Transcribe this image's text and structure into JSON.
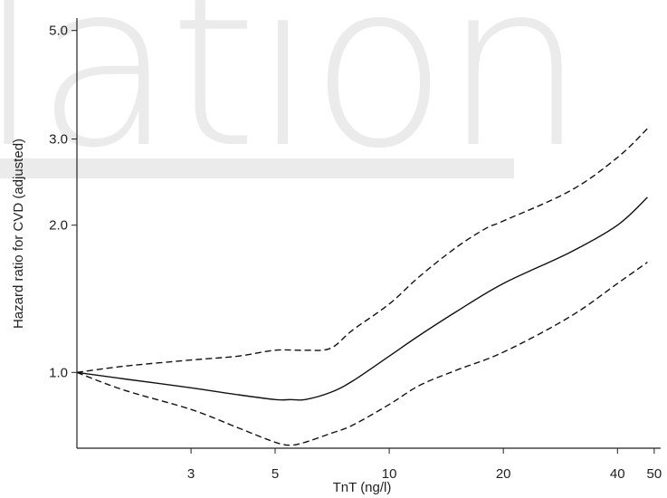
{
  "watermark": {
    "text": "lation"
  },
  "chart_data": {
    "type": "line",
    "xlabel": "TnT (ng/l)",
    "ylabel": "Hazard ratio for CVD (adjusted)",
    "x_scale": "log",
    "y_scale": "log",
    "xlim": [
      1.5,
      52
    ],
    "ylim": [
      0.7,
      5.3
    ],
    "x_ticks": [
      3,
      5,
      10,
      20,
      40,
      50
    ],
    "x_tick_labels": [
      "3",
      "5",
      "10",
      "20",
      "40",
      "50"
    ],
    "y_ticks": [
      1.0,
      2.0,
      3.0,
      5.0
    ],
    "y_tick_labels": [
      "1.0",
      "2.0",
      "3.0",
      "5.0"
    ],
    "grid": false,
    "series": [
      {
        "role": "estimate",
        "line_style": "solid",
        "x": [
          1.5,
          2,
          3,
          4,
          5,
          5.5,
          6,
          7,
          8,
          10,
          12,
          15,
          20,
          30,
          40,
          48
        ],
        "y": [
          1.0,
          0.97,
          0.93,
          0.9,
          0.88,
          0.88,
          0.88,
          0.91,
          0.96,
          1.08,
          1.19,
          1.33,
          1.52,
          1.76,
          2.0,
          2.28
        ]
      },
      {
        "role": "upper confidence limit",
        "line_style": "dashed",
        "x": [
          1.5,
          2,
          3,
          4,
          5,
          6,
          7,
          8,
          10,
          12,
          15,
          18,
          20,
          30,
          40,
          48
        ],
        "y": [
          1.0,
          1.03,
          1.06,
          1.08,
          1.11,
          1.11,
          1.12,
          1.22,
          1.38,
          1.57,
          1.8,
          1.97,
          2.04,
          2.35,
          2.75,
          3.15
        ]
      },
      {
        "role": "lower confidence limit",
        "line_style": "dashed",
        "x": [
          1.5,
          2,
          3,
          4,
          5,
          5.5,
          6,
          7,
          8,
          10,
          12,
          15,
          20,
          30,
          40,
          48
        ],
        "y": [
          1.0,
          0.92,
          0.84,
          0.77,
          0.72,
          0.71,
          0.72,
          0.75,
          0.78,
          0.86,
          0.94,
          1.01,
          1.1,
          1.3,
          1.52,
          1.68
        ]
      }
    ]
  }
}
